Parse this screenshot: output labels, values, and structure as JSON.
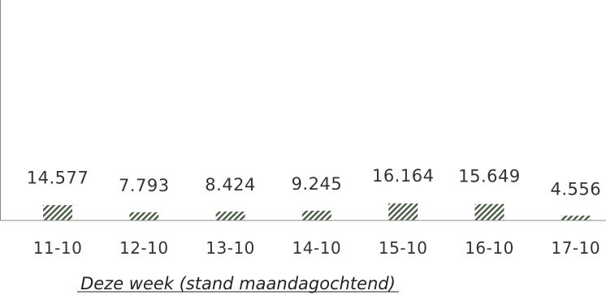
{
  "chart_data": {
    "type": "bar",
    "categories": [
      "11-10",
      "12-10",
      "13-10",
      "14-10",
      "15-10",
      "16-10",
      "17-10"
    ],
    "values": [
      14577,
      7793,
      8424,
      9245,
      16164,
      15649,
      4556
    ],
    "value_labels": [
      "14.577",
      "7.793",
      "8.424",
      "9.245",
      "16.164",
      "15.649",
      "4.556"
    ],
    "caption": "Deze week (stand maandagochtend)",
    "title": "",
    "xlabel": "",
    "ylabel": "",
    "grid": false,
    "bar_fill": "hatched",
    "bar_color": "#4a5a45",
    "axis_color": "#8a8a8a"
  }
}
